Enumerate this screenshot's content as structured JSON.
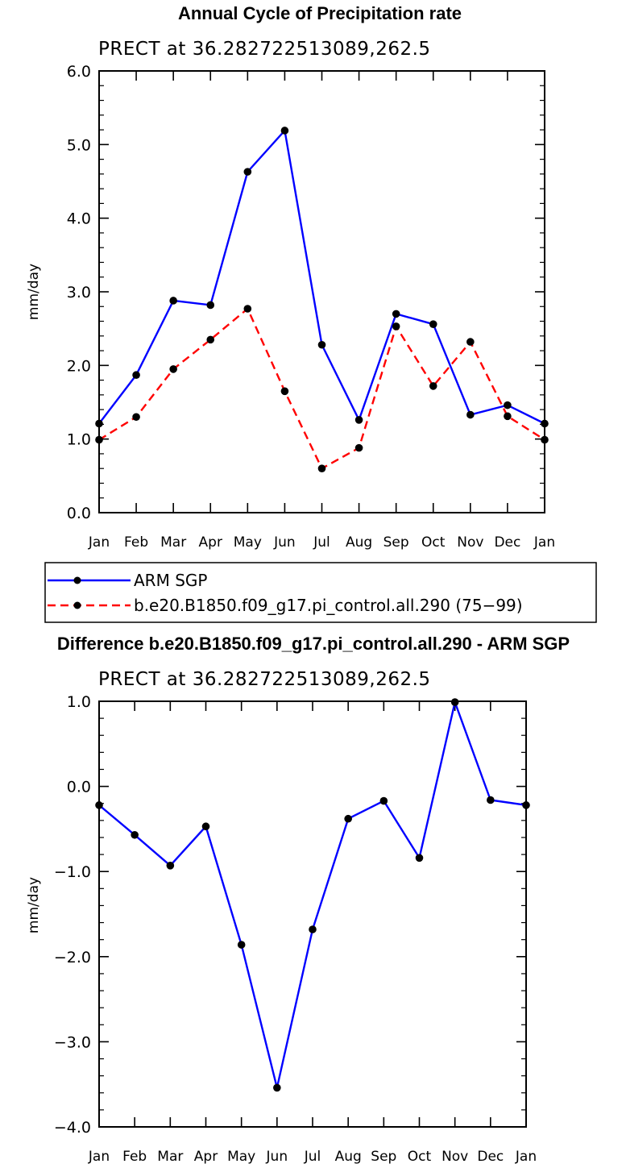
{
  "chart_data": [
    {
      "type": "line",
      "title": "Annual Cycle of Precipitation rate",
      "subtitle": "PRECT at 36.282722513089,262.5",
      "ylabel": "mm/day",
      "ylim": [
        0,
        6
      ],
      "yticks": [
        "0.0",
        "1.0",
        "2.0",
        "3.0",
        "4.0",
        "5.0",
        "6.0"
      ],
      "categories": [
        "Jan",
        "Feb",
        "Mar",
        "Apr",
        "May",
        "Jun",
        "Jul",
        "Aug",
        "Sep",
        "Oct",
        "Nov",
        "Dec",
        "Jan"
      ],
      "series": [
        {
          "name": "ARM SGP",
          "color": "#0000ff",
          "dash": "solid",
          "values": [
            1.21,
            1.87,
            2.88,
            2.82,
            4.63,
            5.19,
            2.28,
            1.26,
            2.7,
            2.56,
            1.33,
            1.46,
            1.21
          ]
        },
        {
          "name": "b.e20.B1850.f09_g17.pi_control.all.290 (75−99)",
          "color": "#ff0000",
          "dash": "dashed",
          "values": [
            0.99,
            1.3,
            1.95,
            2.35,
            2.77,
            1.65,
            0.6,
            0.88,
            2.53,
            1.72,
            2.32,
            1.31,
            0.99
          ]
        }
      ],
      "legend": "below"
    },
    {
      "type": "line",
      "title": "Difference b.e20.B1850.f09_g17.pi_control.all.290 - ARM SGP",
      "subtitle": "PRECT at 36.282722513089,262.5",
      "ylabel": "mm/day",
      "ylim": [
        -4,
        1
      ],
      "yticks": [
        "−4.0",
        "−3.0",
        "−2.0",
        "−1.0",
        "0.0",
        "1.0"
      ],
      "categories": [
        "Jan",
        "Feb",
        "Mar",
        "Apr",
        "May",
        "Jun",
        "Jul",
        "Aug",
        "Sep",
        "Oct",
        "Nov",
        "Dec",
        "Jan"
      ],
      "series": [
        {
          "color": "#0000ff",
          "dash": "solid",
          "values": [
            -0.22,
            -0.57,
            -0.93,
            -0.47,
            -1.86,
            -3.54,
            -1.68,
            -0.38,
            -0.17,
            -0.84,
            0.99,
            -0.16,
            -0.22
          ]
        }
      ]
    }
  ]
}
